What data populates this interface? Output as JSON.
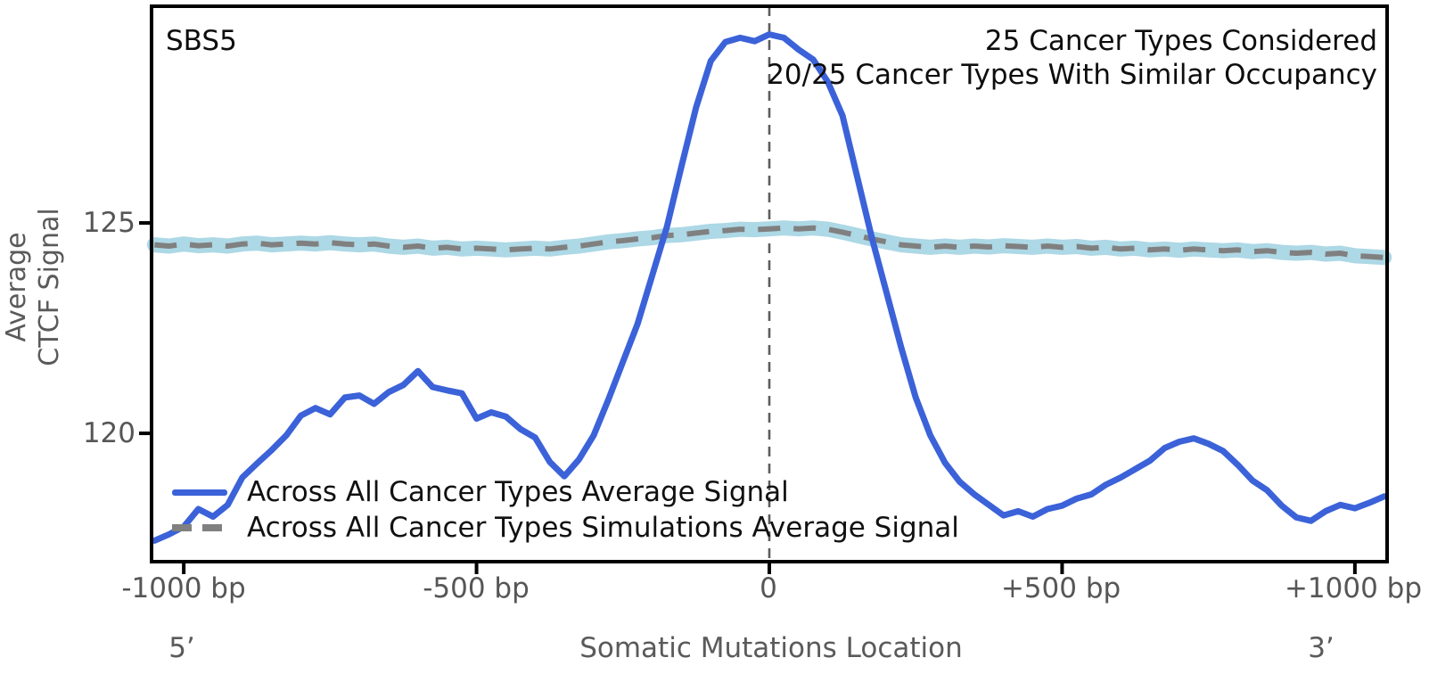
{
  "figure": {
    "corner_label": "SBS5",
    "annotations": [
      "25 Cancer Types Considered",
      "20/25 Cancer Types With Similar Occupancy"
    ],
    "y_axis": {
      "label_lines": [
        "Average",
        "CTCF Signal"
      ],
      "tick_labels": [
        "125",
        "120"
      ]
    },
    "x_axis": {
      "tick_labels": [
        "-1000 bp",
        "-500 bp",
        "0",
        "+500 bp",
        "+1000 bp"
      ],
      "secondary_left": "5’",
      "secondary_center": "Somatic Mutations Location",
      "secondary_right": "3’"
    }
  },
  "chart_data": {
    "type": "line",
    "title": "SBS5",
    "xlabel": "Somatic Mutations Location",
    "ylabel": "Average CTCF Signal",
    "grid": false,
    "legend_position": "lower-left",
    "annotations": [
      "25 Cancer Types Considered",
      "20/25 Cancer Types With Similar Occupancy"
    ],
    "xlim_bp": [
      -1055,
      1055
    ],
    "ylim": [
      116.95,
      130.15
    ],
    "x_ticks_bp": [
      -1000,
      -500,
      0,
      500,
      1000
    ],
    "y_ticks": [
      125,
      120
    ],
    "vline_bp": 0,
    "x_bp": [
      -1050,
      -1025,
      -1000,
      -975,
      -950,
      -925,
      -900,
      -875,
      -850,
      -825,
      -800,
      -775,
      -750,
      -725,
      -700,
      -675,
      -650,
      -625,
      -600,
      -575,
      -550,
      -525,
      -500,
      -475,
      -450,
      -425,
      -400,
      -375,
      -350,
      -325,
      -300,
      -275,
      -250,
      -225,
      -200,
      -175,
      -150,
      -125,
      -100,
      -75,
      -50,
      -25,
      0,
      25,
      50,
      75,
      100,
      125,
      150,
      175,
      200,
      225,
      250,
      275,
      300,
      325,
      350,
      375,
      400,
      425,
      450,
      475,
      500,
      525,
      550,
      575,
      600,
      625,
      650,
      675,
      700,
      725,
      750,
      775,
      800,
      825,
      850,
      875,
      900,
      925,
      950,
      975,
      1000,
      1025,
      1050
    ],
    "series": [
      {
        "name": "Across All Cancer Types Average Signal",
        "color": "#3b62d8",
        "line": "solid",
        "width": 7,
        "values": [
          117.45,
          117.6,
          117.78,
          118.2,
          118.02,
          118.3,
          118.95,
          119.28,
          119.6,
          119.95,
          120.42,
          120.6,
          120.45,
          120.85,
          120.9,
          120.7,
          120.98,
          121.15,
          121.48,
          121.1,
          121.02,
          120.95,
          120.35,
          120.5,
          120.4,
          120.1,
          119.9,
          119.32,
          118.98,
          119.38,
          119.95,
          120.8,
          121.7,
          122.6,
          123.75,
          124.9,
          126.35,
          127.75,
          128.85,
          129.3,
          129.4,
          129.32,
          129.48,
          129.4,
          129.12,
          128.88,
          128.35,
          127.55,
          126.1,
          124.65,
          123.35,
          122.05,
          120.85,
          119.95,
          119.3,
          118.85,
          118.55,
          118.3,
          118.05,
          118.15,
          118.02,
          118.2,
          118.28,
          118.45,
          118.55,
          118.78,
          118.95,
          119.15,
          119.35,
          119.65,
          119.8,
          119.88,
          119.75,
          119.58,
          119.25,
          118.88,
          118.65,
          118.28,
          118.0,
          117.92,
          118.15,
          118.3,
          118.22,
          118.35,
          118.5
        ]
      },
      {
        "name": "Across All Cancer Types Simulations Average Signal",
        "color": "#808080",
        "line": "dashed",
        "width": 6,
        "band_color": "#add8e6",
        "band_halfwidth": 0.14,
        "values": [
          124.48,
          124.45,
          124.5,
          124.46,
          124.48,
          124.45,
          124.5,
          124.52,
          124.48,
          124.5,
          124.52,
          124.5,
          124.53,
          124.5,
          124.48,
          124.5,
          124.45,
          124.42,
          124.45,
          124.4,
          124.42,
          124.38,
          124.4,
          124.38,
          124.36,
          124.38,
          124.4,
          124.38,
          124.42,
          124.45,
          124.5,
          124.55,
          124.58,
          124.62,
          124.65,
          124.7,
          124.72,
          124.76,
          124.8,
          124.82,
          124.85,
          124.84,
          124.86,
          124.88,
          124.86,
          124.88,
          124.85,
          124.78,
          124.7,
          124.62,
          124.55,
          124.48,
          124.45,
          124.42,
          124.45,
          124.42,
          124.45,
          124.43,
          124.46,
          124.44,
          124.42,
          124.45,
          124.42,
          124.44,
          124.4,
          124.42,
          124.38,
          124.4,
          124.36,
          124.38,
          124.35,
          124.38,
          124.36,
          124.34,
          124.36,
          124.32,
          124.34,
          124.3,
          124.28,
          124.3,
          124.26,
          124.28,
          124.22,
          124.2,
          124.18
        ]
      }
    ],
    "colors": {
      "signal_line": "#3b62d8",
      "simulation_line": "#808080",
      "simulation_band": "#add8e6",
      "vline": "#5d5d5d",
      "spine": "#000000",
      "muted_text": "#565656",
      "dark_text": "#0d0d0d"
    }
  }
}
